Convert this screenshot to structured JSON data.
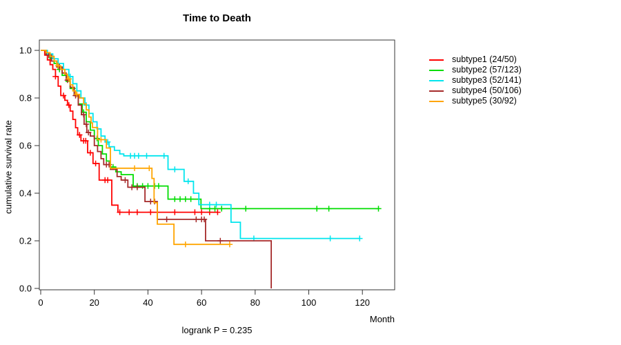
{
  "chart_data": {
    "type": "line",
    "subtype": "kaplan-meier-step-curves",
    "title": "Time to Death",
    "xlabel": "Month",
    "ylabel": "cumulative survival rate",
    "annotation": "logrank P = 0.235",
    "x_ticks": [
      0,
      20,
      40,
      60,
      80,
      100,
      120
    ],
    "y_ticks": [
      0.0,
      0.2,
      0.4,
      0.6,
      0.8,
      1.0
    ],
    "xlim": [
      0,
      132
    ],
    "ylim": [
      0,
      1.04
    ],
    "grid": false,
    "legend_position": "right-outside",
    "series": [
      {
        "name": "subtype1",
        "label": "subtype1 (24/50)",
        "color": "#FF0000",
        "steps": [
          [
            0,
            1.0
          ],
          [
            1.5,
            0.98
          ],
          [
            2.5,
            0.96
          ],
          [
            3.5,
            0.94
          ],
          [
            4.5,
            0.92
          ],
          [
            5.5,
            0.89
          ],
          [
            6.5,
            0.85
          ],
          [
            7.5,
            0.81
          ],
          [
            9,
            0.79
          ],
          [
            10,
            0.77
          ],
          [
            11,
            0.745
          ],
          [
            12,
            0.71
          ],
          [
            13,
            0.675
          ],
          [
            13.8,
            0.645
          ],
          [
            15,
            0.62
          ],
          [
            17.5,
            0.57
          ],
          [
            19.5,
            0.525
          ],
          [
            21.8,
            0.455
          ],
          [
            26.5,
            0.35
          ],
          [
            28.8,
            0.32
          ],
          [
            66,
            0.32
          ]
        ],
        "censor_months": [
          5.5,
          8.5,
          10.5,
          14.5,
          16,
          16.8,
          18.5,
          20.5,
          24,
          25,
          29.5,
          33,
          36,
          41,
          50,
          57.5,
          60,
          63,
          66
        ]
      },
      {
        "name": "subtype2",
        "label": "subtype2 (57/123)",
        "color": "#00DD00",
        "steps": [
          [
            0,
            1.0
          ],
          [
            2,
            0.985
          ],
          [
            3.5,
            0.965
          ],
          [
            5,
            0.945
          ],
          [
            6.5,
            0.92
          ],
          [
            8,
            0.895
          ],
          [
            9.5,
            0.87
          ],
          [
            11,
            0.84
          ],
          [
            12.5,
            0.81
          ],
          [
            14,
            0.775
          ],
          [
            15.5,
            0.74
          ],
          [
            17,
            0.7
          ],
          [
            18.5,
            0.665
          ],
          [
            20,
            0.63
          ],
          [
            21.5,
            0.6
          ],
          [
            23,
            0.565
          ],
          [
            24.5,
            0.535
          ],
          [
            26,
            0.51
          ],
          [
            28,
            0.49
          ],
          [
            30,
            0.478
          ],
          [
            34.5,
            0.43
          ],
          [
            47.5,
            0.375
          ],
          [
            59.8,
            0.335
          ],
          [
            126,
            0.335
          ]
        ],
        "censor_months": [
          7,
          12,
          16,
          21,
          27,
          36,
          38,
          40,
          42.5,
          44,
          50,
          52,
          54,
          56,
          63,
          65,
          67.5,
          76.5,
          103,
          107.5,
          126
        ]
      },
      {
        "name": "subtype3",
        "label": "subtype3 (52/141)",
        "color": "#00E5EE",
        "steps": [
          [
            0,
            1.0
          ],
          [
            2.5,
            0.985
          ],
          [
            4.5,
            0.965
          ],
          [
            6.5,
            0.945
          ],
          [
            8.5,
            0.92
          ],
          [
            10.5,
            0.89
          ],
          [
            12,
            0.86
          ],
          [
            13.5,
            0.83
          ],
          [
            15,
            0.8
          ],
          [
            16.5,
            0.77
          ],
          [
            18,
            0.735
          ],
          [
            19.5,
            0.7
          ],
          [
            21,
            0.67
          ],
          [
            22.5,
            0.64
          ],
          [
            24,
            0.615
          ],
          [
            25.5,
            0.595
          ],
          [
            27.5,
            0.58
          ],
          [
            29.5,
            0.565
          ],
          [
            31,
            0.557
          ],
          [
            47.5,
            0.5
          ],
          [
            53.5,
            0.45
          ],
          [
            57,
            0.4
          ],
          [
            59,
            0.352
          ],
          [
            71,
            0.278
          ],
          [
            74.5,
            0.21
          ],
          [
            119,
            0.21
          ]
        ],
        "censor_months": [
          11,
          17,
          25,
          33.5,
          35,
          36.5,
          39.5,
          46,
          50,
          55,
          63,
          65.5,
          79.5,
          108,
          119
        ]
      },
      {
        "name": "subtype4",
        "label": "subtype4 (50/106)",
        "color": "#A52A2A",
        "steps": [
          [
            0,
            1.0
          ],
          [
            2,
            0.98
          ],
          [
            4,
            0.955
          ],
          [
            6,
            0.93
          ],
          [
            8,
            0.905
          ],
          [
            9.5,
            0.875
          ],
          [
            11,
            0.845
          ],
          [
            12.5,
            0.81
          ],
          [
            14,
            0.77
          ],
          [
            15.2,
            0.73
          ],
          [
            16.2,
            0.69
          ],
          [
            17.2,
            0.655
          ],
          [
            18.5,
            0.64
          ],
          [
            20,
            0.6
          ],
          [
            21.2,
            0.575
          ],
          [
            22.5,
            0.545
          ],
          [
            23.5,
            0.52
          ],
          [
            26,
            0.5
          ],
          [
            28.5,
            0.47
          ],
          [
            30,
            0.455
          ],
          [
            32.5,
            0.425
          ],
          [
            38.9,
            0.365
          ],
          [
            43.5,
            0.29
          ],
          [
            61.5,
            0.2
          ],
          [
            86,
            0.0
          ]
        ],
        "censor_months": [
          3,
          7,
          10,
          13,
          16,
          17,
          17.8,
          24.5,
          25.5,
          31.5,
          34,
          36,
          41,
          42.5,
          47,
          58,
          60,
          61,
          67
        ]
      },
      {
        "name": "subtype5",
        "label": "subtype5 (30/92)",
        "color": "#FFA500",
        "steps": [
          [
            0,
            1.0
          ],
          [
            2,
            0.99
          ],
          [
            3.5,
            0.975
          ],
          [
            5,
            0.955
          ],
          [
            6,
            0.935
          ],
          [
            7.5,
            0.92
          ],
          [
            9,
            0.9
          ],
          [
            10,
            0.88
          ],
          [
            11,
            0.855
          ],
          [
            12,
            0.83
          ],
          [
            13,
            0.815
          ],
          [
            14.5,
            0.8
          ],
          [
            16,
            0.775
          ],
          [
            17,
            0.75
          ],
          [
            18,
            0.72
          ],
          [
            18.8,
            0.695
          ],
          [
            19.3,
            0.676
          ],
          [
            21.2,
            0.625
          ],
          [
            24.5,
            0.59
          ],
          [
            26,
            0.505
          ],
          [
            41.5,
            0.462
          ],
          [
            42.3,
            0.36
          ],
          [
            43.5,
            0.27
          ],
          [
            49.7,
            0.185
          ],
          [
            70.5,
            0.185
          ]
        ],
        "censor_months": [
          6.5,
          10.5,
          13.5,
          22.5,
          35,
          40.5,
          54,
          70.5
        ]
      }
    ]
  }
}
